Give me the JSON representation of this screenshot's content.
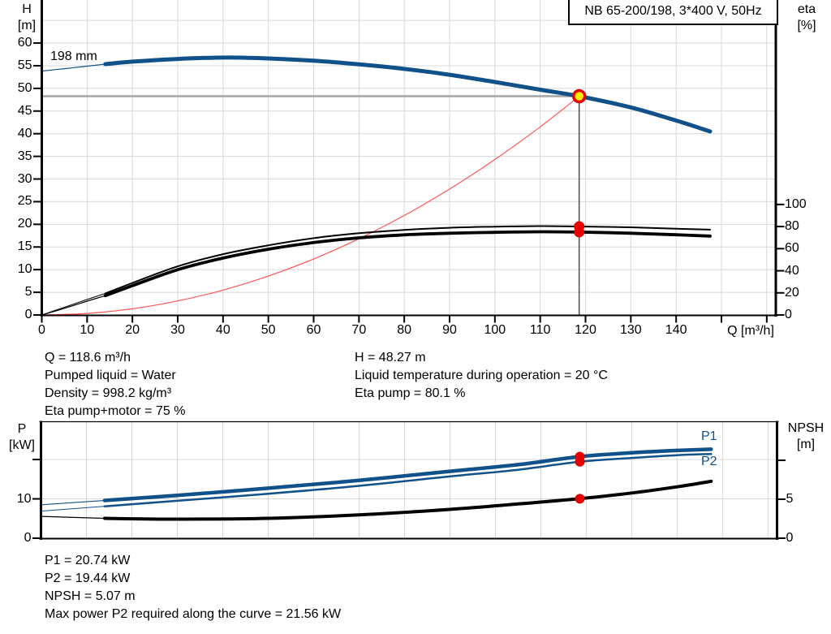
{
  "title_box": {
    "text": "NB 65-200/198, 3*400 V, 50Hz"
  },
  "colors": {
    "curve_blue": "#11518a",
    "curve_black": "#000000",
    "system_curve_red": "#ff5555",
    "marker_red": "#e60000",
    "marker_yellow": "#ffee00",
    "grid": "#d8d8d8",
    "guide_h": "#a3a3a3",
    "guide_v": "#4d4d4d",
    "axis": "#000000"
  },
  "chart_data": [
    {
      "type": "line",
      "id": "qh-chart",
      "title": "NB 65-200/198, 3*400 V, 50Hz",
      "xlabel": "Q [m³/h]",
      "ylabel_left": [
        "H",
        "[m]"
      ],
      "ylabel_right": [
        "eta",
        "[%]"
      ],
      "xlim": [
        0,
        162
      ],
      "ylim_left": [
        0,
        69.5
      ],
      "ylim_right": [
        0,
        285
      ],
      "grid": true,
      "x_ticks": [
        0,
        10,
        20,
        30,
        40,
        50,
        60,
        70,
        80,
        90,
        100,
        110,
        120,
        130,
        140,
        150,
        160
      ],
      "x_tick_labels": [
        "0",
        "10",
        "20",
        "30",
        "40",
        "50",
        "60",
        "70",
        "80",
        "90",
        "100",
        "110",
        "120",
        "130",
        "140",
        "",
        ""
      ],
      "x_tick_marks": true,
      "y_ticks_left": [
        0,
        5,
        10,
        15,
        20,
        25,
        30,
        35,
        40,
        45,
        50,
        55,
        60
      ],
      "y_tick_labels_left": [
        "0",
        "5",
        "10",
        "15",
        "20",
        "25",
        "30",
        "35",
        "40",
        "45",
        "50",
        "55",
        "60"
      ],
      "y_ticks_right": [
        0,
        20,
        40,
        60,
        80,
        100
      ],
      "y_tick_labels_right": [
        "0",
        "20",
        "40",
        "60",
        "80",
        "100"
      ],
      "h_gridlines": [
        5,
        10,
        15,
        20,
        25,
        30,
        35,
        40,
        45,
        50,
        55,
        60,
        65
      ],
      "series": [
        {
          "name": "system-curve",
          "label": "",
          "axis": "left",
          "color": "#ff5555",
          "width": 1.2,
          "points": [
            [
              0,
              0
            ],
            [
              10,
              0.34
            ],
            [
              20,
              1.37
            ],
            [
              30,
              3.09
            ],
            [
              40,
              5.49
            ],
            [
              50,
              8.58
            ],
            [
              60,
              12.35
            ],
            [
              70,
              16.81
            ],
            [
              80,
              21.96
            ],
            [
              90,
              27.79
            ],
            [
              100,
              34.31
            ],
            [
              110,
              41.51
            ],
            [
              118.6,
              48.27
            ]
          ]
        },
        {
          "name": "eta-pump-motor-curve",
          "label": "",
          "axis": "right",
          "color": "#000000",
          "width": 3.8,
          "thin_until": 14,
          "thin_width": 1.2,
          "points": [
            [
              0,
              0
            ],
            [
              5,
              6
            ],
            [
              10,
              12.5
            ],
            [
              14,
              17.5
            ],
            [
              20,
              26.5
            ],
            [
              30,
              41
            ],
            [
              40,
              51.5
            ],
            [
              50,
              59.5
            ],
            [
              60,
              65.5
            ],
            [
              70,
              69.8
            ],
            [
              80,
              72.5
            ],
            [
              90,
              74
            ],
            [
              100,
              74.8
            ],
            [
              110,
              75.3
            ],
            [
              118.6,
              75
            ],
            [
              130,
              74
            ],
            [
              140,
              72.6
            ],
            [
              147.5,
              71.4
            ]
          ]
        },
        {
          "name": "eta-pump-curve",
          "label": "",
          "axis": "right",
          "color": "#000000",
          "width": 2,
          "thin_until": 14,
          "thin_width": 1,
          "points": [
            [
              0,
              0
            ],
            [
              5,
              7
            ],
            [
              10,
              14
            ],
            [
              14,
              19.5
            ],
            [
              20,
              29
            ],
            [
              30,
              44
            ],
            [
              40,
              55
            ],
            [
              50,
              63
            ],
            [
              60,
              69.5
            ],
            [
              70,
              74
            ],
            [
              80,
              77
            ],
            [
              90,
              78.9
            ],
            [
              100,
              79.9
            ],
            [
              110,
              80.4
            ],
            [
              118.6,
              80.1
            ],
            [
              130,
              79.3
            ],
            [
              140,
              78.1
            ],
            [
              147.5,
              77.2
            ]
          ]
        },
        {
          "name": "head-curve-198mm",
          "label": "198 mm",
          "axis": "left",
          "color": "#11518a",
          "width": 5,
          "thin_until": 14,
          "thin_width": 1.2,
          "points": [
            [
              0,
              53.8
            ],
            [
              5,
              54.35
            ],
            [
              10,
              54.9
            ],
            [
              14,
              55.35
            ],
            [
              20,
              55.9
            ],
            [
              30,
              56.5
            ],
            [
              41,
              56.8
            ],
            [
              50,
              56.6
            ],
            [
              60,
              56.1
            ],
            [
              70,
              55.3
            ],
            [
              80,
              54.3
            ],
            [
              90,
              53.0
            ],
            [
              100,
              51.4
            ],
            [
              110,
              49.7
            ],
            [
              118.6,
              48.27
            ],
            [
              130,
              45.8
            ],
            [
              140,
              42.9
            ],
            [
              147.5,
              40.5
            ]
          ]
        }
      ],
      "duty_point": {
        "q": 118.6,
        "h": 48.27,
        "eta_markers": [
          80.1,
          75.0
        ]
      }
    },
    {
      "type": "line",
      "id": "power-npsh-chart",
      "title": "",
      "xlabel": "",
      "ylabel_left": [
        "P",
        "[kW]"
      ],
      "ylabel_right": [
        "NPSH",
        "[m]"
      ],
      "xlim": [
        0,
        162
      ],
      "ylim_left": [
        0,
        29.5
      ],
      "ylim_right": [
        0,
        14.9
      ],
      "grid": true,
      "x_ticks": [
        10,
        20,
        30,
        40,
        50,
        60,
        70,
        80,
        90,
        100,
        110,
        120,
        130,
        140,
        150,
        160
      ],
      "x_tick_labels": [
        "",
        "",
        "",
        "",
        "",
        "",
        "",
        "",
        "",
        "",
        "",
        "",
        "",
        "",
        "",
        ""
      ],
      "x_tick_marks": false,
      "y_ticks_left": [
        0,
        10,
        20
      ],
      "y_tick_labels_left": [
        "0",
        "10",
        ""
      ],
      "y_ticks_right": [
        0,
        5,
        10
      ],
      "y_tick_labels_right": [
        "0",
        "5",
        ""
      ],
      "h_gridlines": [
        10,
        20
      ],
      "series": [
        {
          "name": "p1-curve",
          "label": "P1",
          "axis": "left",
          "color": "#11518a",
          "width": 4.5,
          "thin_until": 14,
          "thin_width": 1.2,
          "points": [
            [
              0,
              8.5
            ],
            [
              14,
              9.6
            ],
            [
              30,
              10.9
            ],
            [
              50,
              12.7
            ],
            [
              70,
              14.7
            ],
            [
              90,
              17.0
            ],
            [
              105,
              18.7
            ],
            [
              118.6,
              20.74
            ],
            [
              130,
              21.7
            ],
            [
              140,
              22.3
            ],
            [
              147.5,
              22.6
            ]
          ]
        },
        {
          "name": "p2-curve",
          "label": "P2",
          "axis": "left",
          "color": "#11518a",
          "width": 2.5,
          "thin_until": 14,
          "thin_width": 1,
          "points": [
            [
              0,
              6.9
            ],
            [
              14,
              8.1
            ],
            [
              30,
              9.5
            ],
            [
              50,
              11.3
            ],
            [
              70,
              13.3
            ],
            [
              90,
              15.7
            ],
            [
              105,
              17.4
            ],
            [
              118.6,
              19.44
            ],
            [
              130,
              20.4
            ],
            [
              140,
              21.1
            ],
            [
              147.5,
              21.4
            ]
          ]
        },
        {
          "name": "npsh-curve",
          "label": "",
          "axis": "right",
          "color": "#000000",
          "width": 4,
          "thin_until": 14,
          "thin_width": 1.2,
          "points": [
            [
              0,
              2.8
            ],
            [
              14,
              2.55
            ],
            [
              30,
              2.45
            ],
            [
              50,
              2.55
            ],
            [
              70,
              3.0
            ],
            [
              90,
              3.7
            ],
            [
              105,
              4.4
            ],
            [
              118.6,
              5.07
            ],
            [
              130,
              5.8
            ],
            [
              140,
              6.6
            ],
            [
              147.5,
              7.3
            ]
          ]
        }
      ],
      "duty_markers": [
        {
          "series": "p1-curve",
          "q": 118.6,
          "value": 20.74,
          "axis": "left"
        },
        {
          "series": "p2-curve",
          "q": 118.6,
          "value": 19.44,
          "axis": "left"
        },
        {
          "series": "npsh-curve",
          "q": 118.6,
          "value": 5.07,
          "axis": "right"
        }
      ]
    }
  ],
  "annotations": {
    "block1": [
      "Q = 118.6 m³/h",
      "Pumped liquid = Water",
      "Density = 998.2 kg/m³",
      "Eta pump+motor = 75 %"
    ],
    "block2": [
      "H = 48.27 m",
      "Liquid temperature during operation = 20 °C",
      "Eta pump = 80.1 %"
    ],
    "block3": [
      "P1 = 20.74 kW",
      "P2 = 19.44 kW",
      "NPSH = 5.07 m",
      "Max power P2 required along the curve = 21.56 kW"
    ]
  }
}
